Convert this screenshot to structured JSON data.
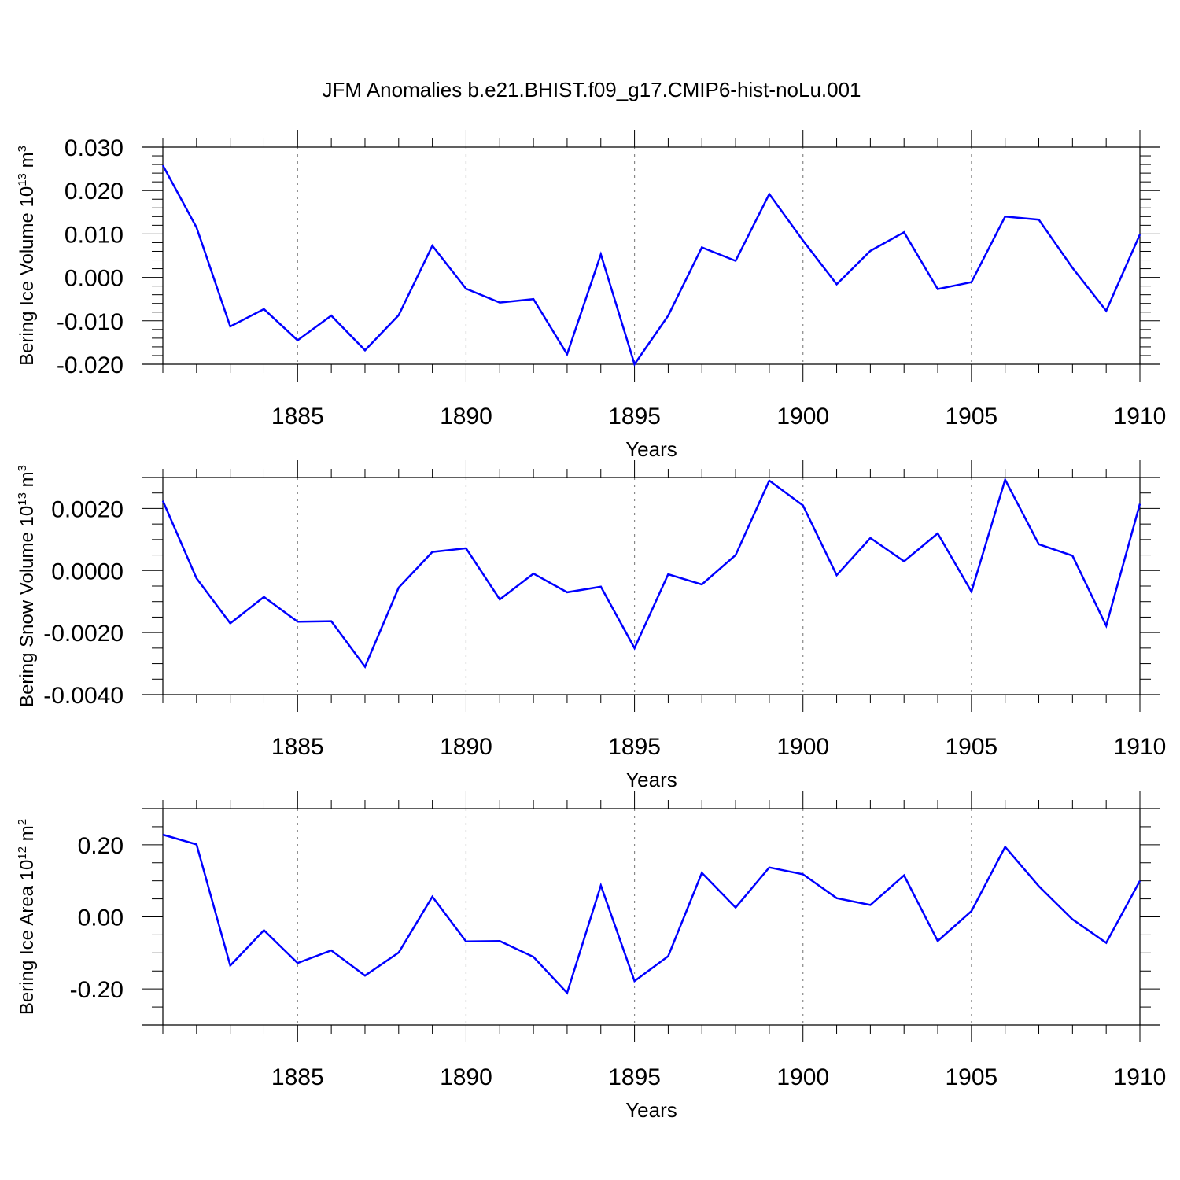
{
  "title": "JFM Anomalies b.e21.BHIST.f09_g17.CMIP6-hist-noLu.001",
  "chart_data": [
    {
      "type": "line",
      "name": "ice-volume",
      "ylabel": {
        "base": "Bering Ice Volume 10",
        "exp1": "13",
        "mid": " m",
        "exp2": "3"
      },
      "xlabel": "Years",
      "xlim": [
        1881,
        1910
      ],
      "ylim": [
        -0.02,
        0.03
      ],
      "yticks": [
        -0.02,
        -0.01,
        0.0,
        0.01,
        0.02,
        0.03
      ],
      "ytick_labels": [
        "-0.020",
        "-0.010",
        "0.000",
        "0.010",
        "0.020",
        "0.030"
      ],
      "yminor_step": 0.002,
      "xticks": [
        1885,
        1890,
        1895,
        1900,
        1905,
        1910
      ],
      "xtick_labels": [
        "1885",
        "1890",
        "1895",
        "1900",
        "1905",
        "1910"
      ],
      "series_color": "#0000ff",
      "x": [
        1881,
        1882,
        1883,
        1884,
        1885,
        1886,
        1887,
        1888,
        1889,
        1890,
        1891,
        1892,
        1893,
        1894,
        1895,
        1896,
        1897,
        1898,
        1899,
        1900,
        1901,
        1902,
        1903,
        1904,
        1905,
        1906,
        1907,
        1908,
        1909,
        1910
      ],
      "values": [
        0.0258,
        0.0115,
        -0.0113,
        -0.0073,
        -0.0145,
        -0.0088,
        -0.0168,
        -0.0087,
        0.0073,
        -0.0026,
        -0.0058,
        -0.005,
        -0.0177,
        0.0053,
        -0.02,
        -0.0088,
        0.0069,
        0.0038,
        0.0192,
        0.0085,
        -0.0016,
        0.0061,
        0.0104,
        -0.0027,
        -0.0011,
        0.014,
        0.0133,
        0.0022,
        -0.0077,
        0.0099
      ]
    },
    {
      "type": "line",
      "name": "snow-volume",
      "ylabel": {
        "base": "Bering Snow Volume 10",
        "exp1": "13",
        "mid": " m",
        "exp2": "3"
      },
      "xlabel": "Years",
      "xlim": [
        1881,
        1910
      ],
      "ylim": [
        -0.004,
        0.003
      ],
      "yticks": [
        -0.004,
        -0.002,
        0.0,
        0.002
      ],
      "ytick_labels": [
        "-0.0040",
        "-0.0020",
        "0.0000",
        "0.0020"
      ],
      "yminor_step": 0.0005,
      "xticks": [
        1885,
        1890,
        1895,
        1900,
        1905,
        1910
      ],
      "xtick_labels": [
        "1885",
        "1890",
        "1895",
        "1900",
        "1905",
        "1910"
      ],
      "series_color": "#0000ff",
      "x": [
        1881,
        1882,
        1883,
        1884,
        1885,
        1886,
        1887,
        1888,
        1889,
        1890,
        1891,
        1892,
        1893,
        1894,
        1895,
        1896,
        1897,
        1898,
        1899,
        1900,
        1901,
        1902,
        1903,
        1904,
        1905,
        1906,
        1907,
        1908,
        1909,
        1910
      ],
      "values": [
        0.00225,
        -0.00025,
        -0.0017,
        -0.00085,
        -0.00165,
        -0.00163,
        -0.0031,
        -0.00055,
        0.0006,
        0.00072,
        -0.00093,
        -0.0001,
        -0.0007,
        -0.00052,
        -0.0025,
        -0.00012,
        -0.00045,
        0.0005,
        0.0029,
        0.0021,
        -0.00015,
        0.00105,
        0.0003,
        0.0012,
        -0.00068,
        0.00293,
        0.00085,
        0.00048,
        -0.00178,
        0.00215
      ]
    },
    {
      "type": "line",
      "name": "ice-area",
      "ylabel": {
        "base": "Bering Ice Area 10",
        "exp1": "12",
        "mid": " m",
        "exp2": "2"
      },
      "xlabel": "Years",
      "xlim": [
        1881,
        1910
      ],
      "ylim": [
        -0.3,
        0.3
      ],
      "yticks": [
        -0.2,
        0.0,
        0.2
      ],
      "ytick_labels": [
        "-0.20",
        "0.00",
        "0.20"
      ],
      "yminor_step": 0.05,
      "xticks": [
        1885,
        1890,
        1895,
        1900,
        1905,
        1910
      ],
      "xtick_labels": [
        "1885",
        "1890",
        "1895",
        "1900",
        "1905",
        "1910"
      ],
      "series_color": "#0000ff",
      "x": [
        1881,
        1882,
        1883,
        1884,
        1885,
        1886,
        1887,
        1888,
        1889,
        1890,
        1891,
        1892,
        1893,
        1894,
        1895,
        1896,
        1897,
        1898,
        1899,
        1900,
        1901,
        1902,
        1903,
        1904,
        1905,
        1906,
        1907,
        1908,
        1909,
        1910
      ],
      "values": [
        0.228,
        0.201,
        -0.135,
        -0.037,
        -0.128,
        -0.093,
        -0.163,
        -0.099,
        0.056,
        -0.068,
        -0.067,
        -0.111,
        -0.211,
        0.087,
        -0.178,
        -0.109,
        0.122,
        0.026,
        0.137,
        0.118,
        0.052,
        0.033,
        0.115,
        -0.067,
        0.016,
        0.194,
        0.085,
        -0.007,
        -0.072,
        0.1
      ]
    }
  ]
}
